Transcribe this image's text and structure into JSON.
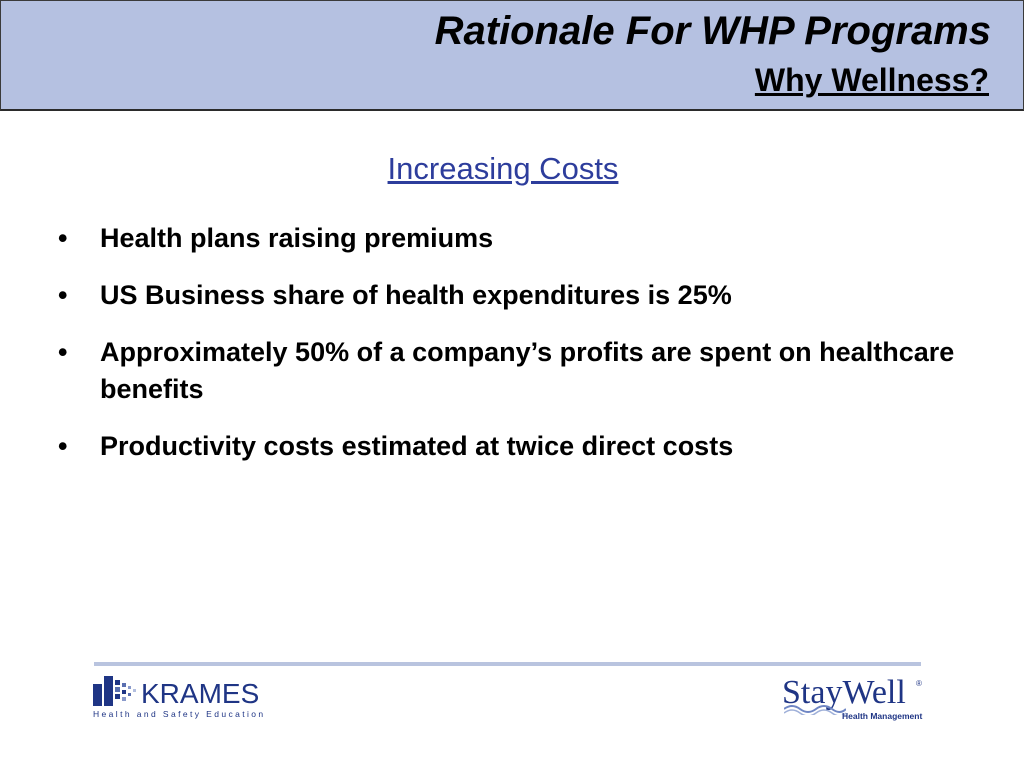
{
  "slide": {
    "title": "Rationale For WHP Programs",
    "subtitle": "Why Wellness?",
    "section_heading": "Increasing Costs",
    "bullet_symbol": "•",
    "bullets": [
      "Health plans raising premiums",
      "US Business share of health expenditures is 25%",
      "Approximately 50% of a company’s profits are spent on healthcare benefits",
      "Productivity costs estimated at twice direct costs"
    ]
  },
  "footer": {
    "krames": {
      "name": "KRAMES",
      "tagline": "Health and Safety Education",
      "icon": "krames-logo-mark-icon"
    },
    "staywell": {
      "name": "StayWell",
      "registered": "®",
      "tagline": "Health Management",
      "icon": "staywell-wave-icon"
    }
  },
  "colors": {
    "title_band": "#b5c1e1",
    "heading": "#2d3d9c",
    "brand_blue": "#1f3585",
    "footer_rule": "#b9c4df"
  }
}
